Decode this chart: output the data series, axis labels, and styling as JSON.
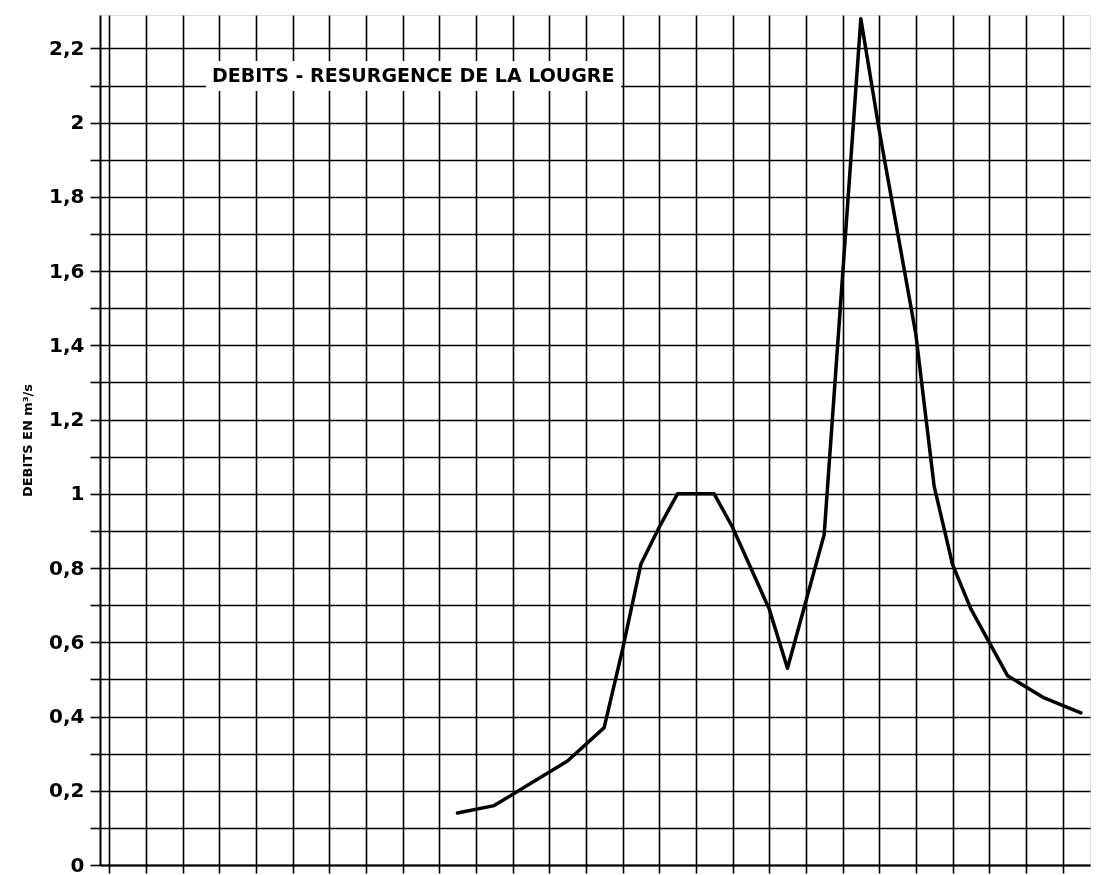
{
  "chart_data": {
    "type": "line",
    "title": "DEBITS - RESURGENCE  DE LA LOUGRE",
    "ylabel": "DEBITS EN m³/s",
    "categories": [
      null,
      null,
      null,
      null,
      null,
      null,
      null,
      null,
      null,
      null,
      null,
      null,
      null,
      null,
      null,
      null,
      null,
      null,
      null,
      null,
      null,
      null,
      null,
      null,
      null,
      null,
      null,
      null,
      null,
      null,
      null,
      null,
      null,
      null,
      null,
      null,
      null,
      null,
      null,
      null,
      null,
      null,
      null,
      null,
      null,
      null,
      null,
      null,
      null,
      null,
      null,
      null,
      null,
      null
    ],
    "series": [
      {
        "color": "#000000",
        "values": [
          null,
          null,
          null,
          null,
          null,
          null,
          null,
          null,
          null,
          null,
          null,
          null,
          null,
          null,
          null,
          null,
          null,
          null,
          null,
          0.14,
          null,
          0.16,
          null,
          0.22,
          null,
          0.28,
          null,
          0.37,
          0.58,
          0.81,
          0.91,
          1.0,
          null,
          1.0,
          0.91,
          0.8,
          0.69,
          0.53,
          0.71,
          0.89,
          null,
          2.28,
          1.98,
          null,
          1.43,
          1.02,
          0.81,
          0.69,
          null,
          0.51,
          null,
          0.45,
          null,
          0.41
        ]
      }
    ],
    "ylim": [
      0,
      2.29
    ],
    "yticks": [
      {
        "value": 0,
        "label": "0"
      },
      {
        "value": 0.1,
        "label": null
      },
      {
        "value": 0.2,
        "label": "0,2"
      },
      {
        "value": 0.3,
        "label": null
      },
      {
        "value": 0.4,
        "label": "0,4"
      },
      {
        "value": 0.5,
        "label": null
      },
      {
        "value": 0.6,
        "label": "0,6"
      },
      {
        "value": 0.7,
        "label": null
      },
      {
        "value": 0.8,
        "label": "0,8"
      },
      {
        "value": 0.9,
        "label": null
      },
      {
        "value": 1,
        "label": "1"
      },
      {
        "value": 1.1,
        "label": null
      },
      {
        "value": 1.2,
        "label": "1,2"
      },
      {
        "value": 1.3,
        "label": null
      },
      {
        "value": 1.4,
        "label": "1,4"
      },
      {
        "value": 1.5,
        "label": null
      },
      {
        "value": 1.6,
        "label": "1,6"
      },
      {
        "value": 1.7,
        "label": null
      },
      {
        "value": 1.8,
        "label": "1,8"
      },
      {
        "value": 1.9,
        "label": null
      },
      {
        "value": 2,
        "label": "2"
      },
      {
        "value": 2.1,
        "label": null
      },
      {
        "value": 2.2,
        "label": "2,2"
      }
    ],
    "tick_labels": "y",
    "grid": true,
    "marker": "none",
    "line_style": "solid"
  }
}
